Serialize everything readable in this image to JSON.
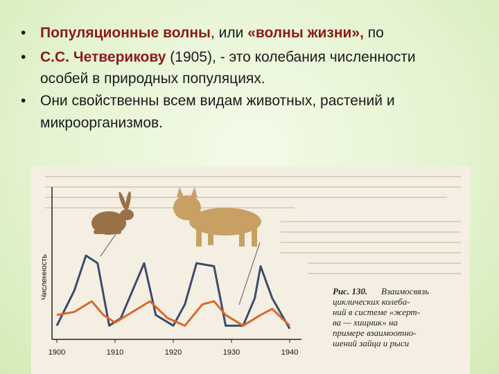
{
  "bullets": [
    {
      "lines": [
        [
          {
            "text": "Популяционные волны",
            "style": "accent"
          },
          {
            "text": ", или "
          },
          {
            "text": "«волны жизни»,",
            "style": "accent"
          },
          {
            "text": " по"
          }
        ]
      ]
    },
    {
      "lines": [
        [
          {
            "text": "С.С. Четверикову",
            "style": "accent"
          },
          {
            "text": " (1905), - это колебания численности"
          }
        ],
        [
          {
            "text": "особей в природных популяциях."
          }
        ]
      ]
    },
    {
      "lines": [
        [
          {
            "text": "Они свойственны всем видам животных, растений и"
          }
        ],
        [
          {
            "text": "микроорганизмов."
          }
        ]
      ]
    }
  ],
  "figure": {
    "caption": [
      "Рис. 130.",
      "Взаимосвязь",
      "циклических колеба-",
      "ний в системе «жерт-",
      "ва — хищник» на",
      "примере взаимоотно-",
      "шений зайца и рыси"
    ],
    "chart": {
      "type": "line",
      "ylabel": "Численность",
      "xlim": [
        1900,
        1940
      ],
      "xticks": [
        1900,
        1910,
        1920,
        1930,
        1940
      ],
      "ylim": [
        0,
        100
      ],
      "series": [
        {
          "color": "#3d4a6c",
          "x": [
            1900,
            1903,
            1905,
            1907,
            1909,
            1911,
            1913,
            1915,
            1917,
            1920,
            1922,
            1924,
            1927,
            1929,
            1932,
            1934,
            1935,
            1937,
            1940
          ],
          "values": [
            9,
            32,
            55,
            50,
            9,
            14,
            32,
            50,
            16,
            9,
            23,
            50,
            48,
            9,
            9,
            27,
            48,
            27,
            7
          ]
        },
        {
          "color": "#d9692a",
          "x": [
            1900,
            1903,
            1906,
            1908,
            1910,
            1913,
            1916,
            1919,
            1922,
            1925,
            1927,
            1929,
            1932,
            1935,
            1937,
            1940
          ],
          "values": [
            16,
            18,
            25,
            16,
            11,
            18,
            25,
            14,
            9,
            23,
            25,
            16,
            9,
            16,
            20,
            9
          ]
        }
      ]
    }
  }
}
